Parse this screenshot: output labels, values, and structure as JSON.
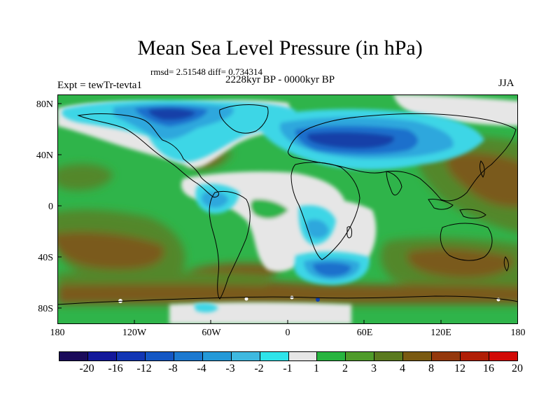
{
  "title": "Mean Sea Level Pressure (in hPa)",
  "stats": "rmsd= 2.51548 diff= 0.734314",
  "period": "2228kyr BP - 0000kyr BP",
  "experiment": "Expt = tewTr-tevta1",
  "season": "JJA",
  "axes": {
    "y_ticks": [
      "80N",
      "40N",
      "0",
      "40S",
      "80S"
    ],
    "x_ticks": [
      "180",
      "120W",
      "60W",
      "0",
      "60E",
      "120E",
      "180"
    ]
  },
  "colorbar": {
    "labels": [
      "-20",
      "-16",
      "-12",
      "-8",
      "-4",
      "-3",
      "-2",
      "-1",
      "1",
      "2",
      "3",
      "4",
      "8",
      "12",
      "16",
      "20"
    ],
    "colors": [
      "#1a0a5a",
      "#13189a",
      "#1236b4",
      "#1457c4",
      "#1c79d0",
      "#2499d8",
      "#3fb9e0",
      "#2ee4ea",
      "#e6e6e6",
      "#27b43f",
      "#4f9b2a",
      "#5a7a1e",
      "#7a5a12",
      "#94380c",
      "#b01e06",
      "#d20a06"
    ]
  },
  "palette": {
    "land_coast": "#000000",
    "neutral": "#e6e6e6",
    "green": "#2fb44a",
    "olive": "#52872c",
    "brown": "#7a5a1e",
    "cyan": "#3cd6e6",
    "lightblue": "#2da7dd",
    "blue": "#1b6fcc",
    "darkblue": "#1240a8"
  }
}
